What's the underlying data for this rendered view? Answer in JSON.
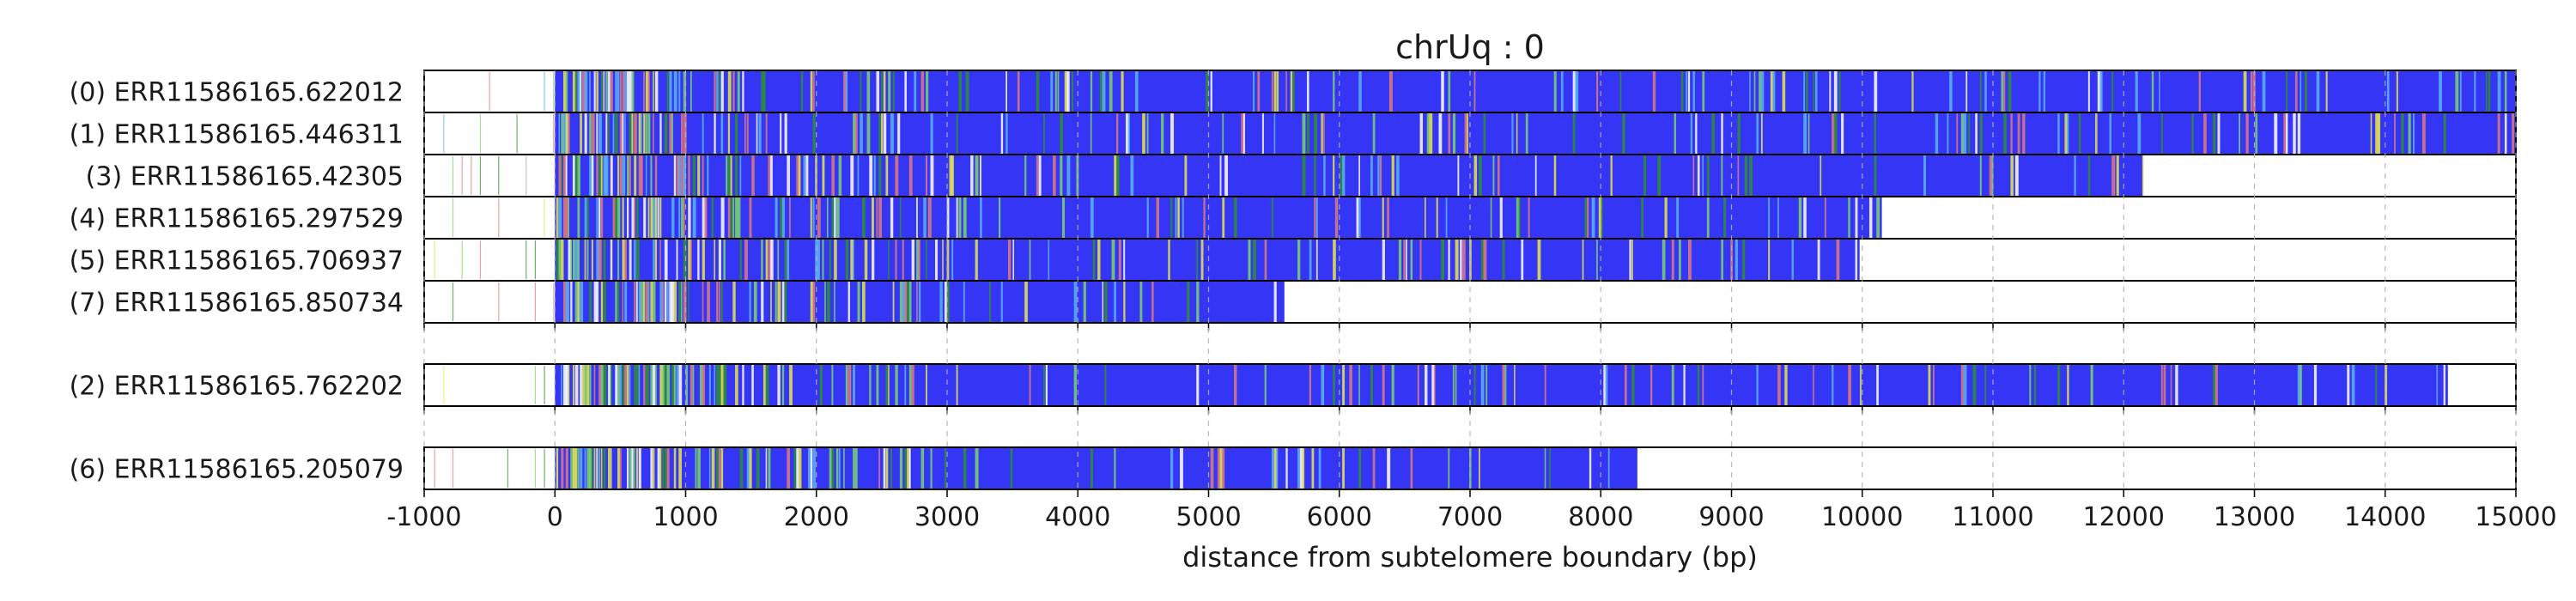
{
  "chart_data": {
    "type": "read-track",
    "title": "chrUq : 0",
    "xlabel": "distance from subtelomere boundary (bp)",
    "xlim": [
      -1000,
      15000
    ],
    "xticks": [
      -1000,
      0,
      1000,
      2000,
      3000,
      4000,
      5000,
      6000,
      7000,
      8000,
      9000,
      10000,
      11000,
      12000,
      13000,
      14000,
      15000
    ],
    "grid": "vertical dashed",
    "colors": {
      "main": "#3535f5",
      "variants": [
        "#2d8f2d",
        "#7bd36b",
        "#e8e84a",
        "#5ab4f0",
        "#ffffff",
        "#e07a7a"
      ]
    },
    "groups": [
      {
        "reads": [
          {
            "label": "(0) ERR11586165.622012",
            "start": -1000,
            "dense_start": 0,
            "end": 15000
          },
          {
            "label": "(1) ERR11586165.446311",
            "start": -1000,
            "dense_start": 0,
            "end": 15000
          },
          {
            "label": "(3) ERR11586165.42305",
            "start": -1000,
            "dense_start": 0,
            "end": 12150
          },
          {
            "label": "(4) ERR11586165.297529",
            "start": -1000,
            "dense_start": 0,
            "end": 10150
          },
          {
            "label": "(5) ERR11586165.706937",
            "start": -1000,
            "dense_start": 0,
            "end": 9980
          },
          {
            "label": "(7) ERR11586165.850734",
            "start": -1000,
            "dense_start": 0,
            "end": 5580
          }
        ]
      },
      {
        "reads": [
          {
            "label": "(2) ERR11586165.762202",
            "start": -1000,
            "dense_start": 0,
            "end": 14480
          }
        ]
      },
      {
        "reads": [
          {
            "label": "(6) ERR11586165.205079",
            "start": -1000,
            "dense_start": 0,
            "end": 8280
          }
        ]
      }
    ]
  }
}
